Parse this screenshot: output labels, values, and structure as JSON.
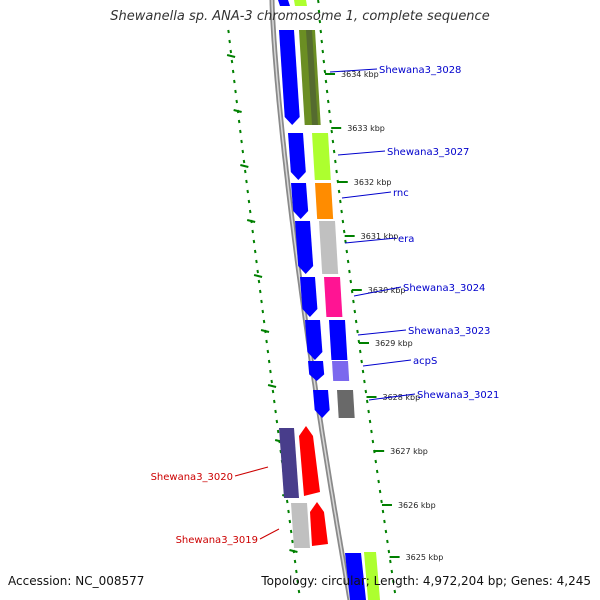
{
  "title": "Shewanella sp. ANA-3 chromosome 1, complete sequence",
  "accession": "Accession: NC_008577",
  "topology": "Topology: circular; Length: 4,972,204 bp; Genes: 4,245",
  "colors": {
    "backbone": "#999999",
    "ticks": "#008000",
    "forward_label": "#0000cc",
    "reverse_label": "#cc0000",
    "cds": "#0000ff",
    "reverse_cds": "#ff0000"
  },
  "kbp_ticks": [
    {
      "label": "3634 kbp"
    },
    {
      "label": "3633 kbp"
    },
    {
      "label": "3632 kbp"
    },
    {
      "label": "3631 kbp"
    },
    {
      "label": "3630 kbp"
    },
    {
      "label": "3629 kbp"
    },
    {
      "label": "3628 kbp"
    },
    {
      "label": "3627 kbp"
    },
    {
      "label": "3626 kbp"
    },
    {
      "label": "3625 kbp"
    }
  ],
  "genes": [
    {
      "name": "Shewana3_3028",
      "strand": "forward",
      "color": "#6b8e23"
    },
    {
      "name": "Shewana3_3027",
      "strand": "forward",
      "color": "#adff2f"
    },
    {
      "name": "rnc",
      "strand": "forward",
      "color": "#ff8c00"
    },
    {
      "name": "era",
      "strand": "forward",
      "color": "#c0c0c0"
    },
    {
      "name": "Shewana3_3024",
      "strand": "forward",
      "color": "#ff1493"
    },
    {
      "name": "Shewana3_3023",
      "strand": "forward",
      "color": "#0000ff"
    },
    {
      "name": "acpS",
      "strand": "forward",
      "color": "#7b68ee"
    },
    {
      "name": "Shewana3_3021",
      "strand": "forward",
      "color": "#696969"
    },
    {
      "name": "Shewana3_3020",
      "strand": "reverse",
      "color": "#483d8b"
    },
    {
      "name": "Shewana3_3019",
      "strand": "reverse",
      "color": "#c0c0c0"
    }
  ]
}
